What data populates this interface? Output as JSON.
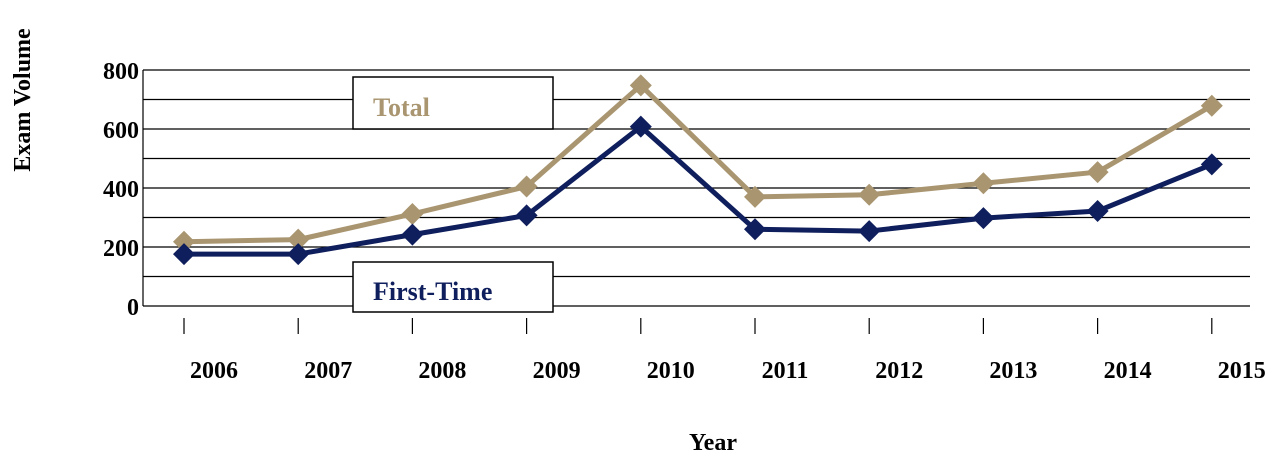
{
  "chart_data": {
    "type": "line",
    "title": "",
    "xlabel": "Year",
    "ylabel": "Exam Volume",
    "categories": [
      "2006",
      "2007",
      "2008",
      "2009",
      "2010",
      "2011",
      "2012",
      "2013",
      "2014",
      "2015"
    ],
    "ylim": [
      0,
      800
    ],
    "yticks": [
      "0",
      "200",
      "400",
      "600",
      "800"
    ],
    "grid": true,
    "series": [
      {
        "name": "Total",
        "color": "#a99671",
        "values": [
          218,
          225,
          312,
          405,
          748,
          370,
          377,
          416,
          454,
          679
        ]
      },
      {
        "name": "First-Time",
        "color": "#0f1e5c",
        "values": [
          176,
          176,
          242,
          307,
          608,
          260,
          254,
          298,
          322,
          480
        ]
      }
    ]
  }
}
